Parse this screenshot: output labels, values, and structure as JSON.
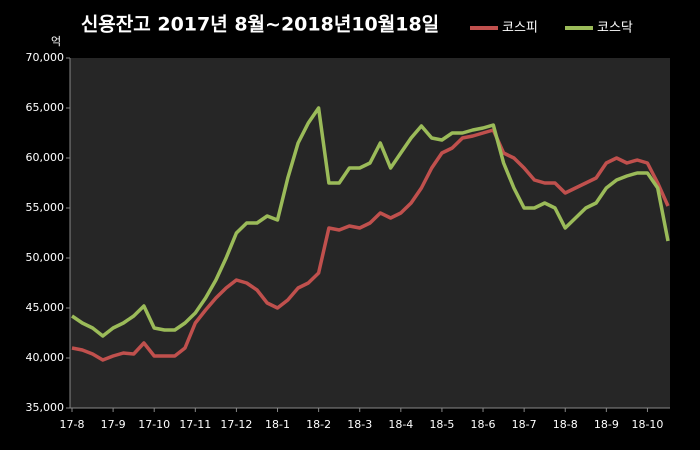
{
  "chart_data": {
    "type": "line",
    "title": "신용잔고  2017년 8월~2018년10월18일",
    "y_unit": "억",
    "categories": [
      "17-8",
      null,
      null,
      null,
      "17-9",
      null,
      null,
      null,
      "17-10",
      null,
      null,
      null,
      "17-11",
      null,
      null,
      null,
      "17-12",
      null,
      null,
      null,
      "18-1",
      null,
      null,
      null,
      "18-2",
      null,
      null,
      null,
      "18-3",
      null,
      null,
      null,
      "18-4",
      null,
      null,
      null,
      "18-5",
      null,
      null,
      null,
      "18-6",
      null,
      null,
      null,
      "18-7",
      null,
      null,
      null,
      "18-8",
      null,
      null,
      null,
      "18-9",
      null,
      null,
      null,
      "18-10",
      null,
      null
    ],
    "series": [
      {
        "name": "코스피",
        "color": "#c0504d",
        "values": [
          41000,
          40800,
          40400,
          39800,
          40200,
          40500,
          40400,
          41500,
          40200,
          40200,
          40200,
          41000,
          43500,
          44800,
          46000,
          47000,
          47800,
          47500,
          46800,
          45500,
          45000,
          45800,
          47000,
          47500,
          48500,
          53000,
          52800,
          53200,
          53000,
          53500,
          54500,
          54000,
          54500,
          55500,
          57000,
          59000,
          60500,
          61000,
          62000,
          62200,
          62500,
          62800,
          60500,
          60000,
          59000,
          57800,
          57500,
          57500,
          56500,
          57000,
          57500,
          58000,
          59500,
          60000,
          59500,
          59800,
          59500,
          57500,
          55200
        ]
      },
      {
        "name": "코스닥",
        "color": "#9bbb59",
        "values": [
          44200,
          43500,
          43000,
          42200,
          43000,
          43500,
          44200,
          45200,
          43000,
          42800,
          42800,
          43500,
          44500,
          46000,
          47800,
          50000,
          52500,
          53500,
          53500,
          54200,
          53800,
          58000,
          61500,
          63500,
          65000,
          57500,
          57500,
          59000,
          59000,
          59500,
          61500,
          59000,
          60500,
          62000,
          63200,
          62000,
          61800,
          62500,
          62500,
          62800,
          63000,
          63300,
          59500,
          57000,
          55000,
          55000,
          55500,
          55000,
          53000,
          54000,
          55000,
          55500,
          57000,
          57800,
          58200,
          58500,
          58500,
          57000,
          51700
        ]
      }
    ],
    "ylim": [
      35000,
      70000
    ],
    "yticks": [
      {
        "value": 35000,
        "label": "35,000"
      },
      {
        "value": 40000,
        "label": "40,000"
      },
      {
        "value": 45000,
        "label": "45,000"
      },
      {
        "value": 50000,
        "label": "50,000"
      },
      {
        "value": 55000,
        "label": "55,000"
      },
      {
        "value": 60000,
        "label": "60,000"
      },
      {
        "value": 65000,
        "label": "65,000"
      },
      {
        "value": 70000,
        "label": "70,000"
      }
    ],
    "grid": false,
    "legend": "top-right"
  }
}
